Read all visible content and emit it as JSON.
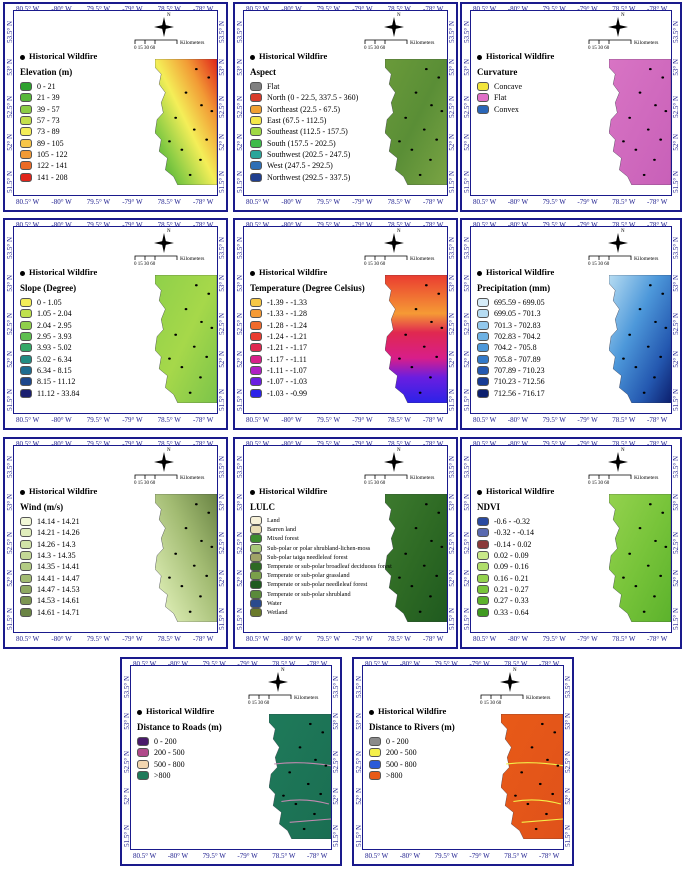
{
  "colors": {
    "frame": "#1a1a8c"
  },
  "axis": {
    "lon_labels": [
      "80.5° W",
      "-80° W",
      "79.5° W",
      "-79° W",
      "78.5° W",
      "-78° W"
    ],
    "lat_labels_left": [
      "53.5° N",
      "53° N",
      "52.5° N",
      "52° N",
      "51.5° N"
    ],
    "lat_labels_right": [
      "53.5° N",
      "53° N",
      "52.5° N",
      "52° N",
      "51.5° N"
    ]
  },
  "scale": {
    "ticks": "0 15 30     60",
    "unit": "Kilometers",
    "north": "N"
  },
  "point_label": "Historical Wildfire",
  "panels": [
    {
      "title": "Elevation (m)",
      "fill": "elevation",
      "items": [
        {
          "label": "0 - 21",
          "color": "#2ea12e"
        },
        {
          "label": "21 - 39",
          "color": "#58b83a"
        },
        {
          "label": "39 - 57",
          "color": "#8ccd45"
        },
        {
          "label": "57 - 73",
          "color": "#c4e04c"
        },
        {
          "label": "73 - 89",
          "color": "#f4ee58"
        },
        {
          "label": "89 - 105",
          "color": "#f6c548"
        },
        {
          "label": "105 - 122",
          "color": "#f29a35"
        },
        {
          "label": "122 - 141",
          "color": "#ec6a24"
        },
        {
          "label": "141 - 208",
          "color": "#e0241a"
        }
      ]
    },
    {
      "title": "Aspect",
      "fill": "aspect",
      "items": [
        {
          "label": "Flat",
          "color": "#808080"
        },
        {
          "label": "North (0 - 22.5, 337.5 - 360)",
          "color": "#d83b2a"
        },
        {
          "label": "Northeast (22.5 - 67.5)",
          "color": "#f0a030"
        },
        {
          "label": "East (67.5 - 112.5)",
          "color": "#f4e84a"
        },
        {
          "label": "Southeast (112.5 - 157.5)",
          "color": "#9fd844"
        },
        {
          "label": "South (157.5 - 202.5)",
          "color": "#3fbb4a"
        },
        {
          "label": "Southwest (202.5 - 247.5)",
          "color": "#2aa59a"
        },
        {
          "label": "West (247.5 - 292.5)",
          "color": "#2f6fb5"
        },
        {
          "label": "Northwest (292.5 - 337.5)",
          "color": "#1f3f8f"
        }
      ]
    },
    {
      "title": "Curvature",
      "fill": "curvature",
      "items": [
        {
          "label": "Concave",
          "color": "#f2e53a"
        },
        {
          "label": "Flat",
          "color": "#e070c8"
        },
        {
          "label": "Convex",
          "color": "#2a66b8"
        }
      ]
    },
    {
      "title": "Slope (Degree)",
      "fill": "slope",
      "items": [
        {
          "label": "0 - 1.05",
          "color": "#f4ee58"
        },
        {
          "label": "1.05 - 2.04",
          "color": "#bfe04c"
        },
        {
          "label": "2.04 - 2.95",
          "color": "#8fd04a"
        },
        {
          "label": "2.95 - 3.93",
          "color": "#5ebf50"
        },
        {
          "label": "3.93 - 5.02",
          "color": "#35a868"
        },
        {
          "label": "5.02 - 6.34",
          "color": "#238c82"
        },
        {
          "label": "6.34 - 8.15",
          "color": "#1e6c90"
        },
        {
          "label": "8.15 - 11.12",
          "color": "#1d478c"
        },
        {
          "label": "11.12 - 33.84",
          "color": "#1a1f70"
        }
      ]
    },
    {
      "title": "Temperature (Degree Celsius)",
      "fill": "temperature",
      "items": [
        {
          "label": "-1.39 - -1.33",
          "color": "#f7c845"
        },
        {
          "label": "-1.33 - -1.28",
          "color": "#f59a35"
        },
        {
          "label": "-1.28 - -1.24",
          "color": "#f06a2c"
        },
        {
          "label": "-1.24 - -1.21",
          "color": "#ea3c30"
        },
        {
          "label": "-1.21 - -1.17",
          "color": "#e02850"
        },
        {
          "label": "-1.17 - -1.11",
          "color": "#d81e8a"
        },
        {
          "label": "-1.11 - -1.07",
          "color": "#b01ec4"
        },
        {
          "label": "-1.07 - -1.03",
          "color": "#6a1ee0"
        },
        {
          "label": "-1.03 - -0.99",
          "color": "#2b22e8"
        }
      ]
    },
    {
      "title": "Precipitation (mm)",
      "fill": "precipitation",
      "items": [
        {
          "label": "695.59 - 699.05",
          "color": "#d6ecf8"
        },
        {
          "label": "699.05 - 701.3",
          "color": "#b6dcf2"
        },
        {
          "label": "701.3 - 702.83",
          "color": "#92c8ec"
        },
        {
          "label": "702.83 - 704.2",
          "color": "#6eb2e4"
        },
        {
          "label": "704.2 - 705.8",
          "color": "#4d98da"
        },
        {
          "label": "705.8 - 707.89",
          "color": "#3379c8"
        },
        {
          "label": "707.89 - 710.23",
          "color": "#2458b0"
        },
        {
          "label": "710.23 - 712.56",
          "color": "#173b94"
        },
        {
          "label": "712.56 - 716.17",
          "color": "#0c1f6e"
        }
      ]
    },
    {
      "title": "Wind (m/s)",
      "fill": "wind",
      "items": [
        {
          "label": "14.14 - 14.21",
          "color": "#f0f6d6"
        },
        {
          "label": "14.21 - 14.26",
          "color": "#e0eebc"
        },
        {
          "label": "14.26 - 14.3",
          "color": "#d2e4a8"
        },
        {
          "label": "14.3 - 14.35",
          "color": "#c4d996"
        },
        {
          "label": "14.35 - 14.41",
          "color": "#b3cb84"
        },
        {
          "label": "14.41 - 14.47",
          "color": "#a2bb72"
        },
        {
          "label": "14.47 - 14.53",
          "color": "#8fa962"
        },
        {
          "label": "14.53 - 14.61",
          "color": "#7c9652"
        },
        {
          "label": "14.61 - 14.71",
          "color": "#6a8444"
        }
      ]
    },
    {
      "title": "LULC",
      "fill": "lulc",
      "small": true,
      "items": [
        {
          "label": "Land",
          "color": "#f6f0d8"
        },
        {
          "label": "Barren land",
          "color": "#e8dcb4"
        },
        {
          "label": "Mixed forest",
          "color": "#3d8c2e"
        },
        {
          "label": "Sub-polar or polar shrubland-lichen-moss",
          "color": "#a8c87a"
        },
        {
          "label": "Sub-polar taiga needleleaf forest",
          "color": "#a0a468"
        },
        {
          "label": "Temperate or sub-polar broadleaf deciduous forest",
          "color": "#2e6a24"
        },
        {
          "label": "Temperate or sub-polar grassland",
          "color": "#7aa04a"
        },
        {
          "label": "Temperate or sub-polar needleleaf forest",
          "color": "#1f5a1f"
        },
        {
          "label": "Temperate or sub-polar shrubland",
          "color": "#5a8a3a"
        },
        {
          "label": "Water",
          "color": "#2a4a8c"
        },
        {
          "label": "Wetland",
          "color": "#6a7a2a"
        }
      ]
    },
    {
      "title": "NDVI",
      "fill": "ndvi",
      "items": [
        {
          "label": "-0.6 - -0.32",
          "color": "#2a4aa0"
        },
        {
          "label": "-0.32 - -0.14",
          "color": "#5a6ab0"
        },
        {
          "label": "-0.14 - 0.02",
          "color": "#8a3a3a"
        },
        {
          "label": "0.02 - 0.09",
          "color": "#c8e888"
        },
        {
          "label": "0.09 - 0.16",
          "color": "#b0de6a"
        },
        {
          "label": "0.16 - 0.21",
          "color": "#94d24e"
        },
        {
          "label": "0.21 - 0.27",
          "color": "#78c43a"
        },
        {
          "label": "0.27 - 0.33",
          "color": "#5cb22c"
        },
        {
          "label": "0.33 - 0.64",
          "color": "#3f9a20"
        }
      ]
    },
    {
      "title": "Distance to Roads (m)",
      "fill": "roads",
      "items": [
        {
          "label": "0 - 200",
          "color": "#4a1a6a"
        },
        {
          "label": "200 - 500",
          "color": "#b04a8a"
        },
        {
          "label": "500 - 800",
          "color": "#f2d6b0"
        },
        {
          "label": ">800",
          "color": "#1f7a5a"
        }
      ]
    },
    {
      "title": "Distance to Rivers (m)",
      "fill": "rivers",
      "items": [
        {
          "label": "0 - 200",
          "color": "#8a8a8a"
        },
        {
          "label": "200 - 500",
          "color": "#f4f04a"
        },
        {
          "label": "500 - 800",
          "color": "#2a5ad8"
        },
        {
          "label": ">800",
          "color": "#e85a18"
        }
      ]
    }
  ]
}
